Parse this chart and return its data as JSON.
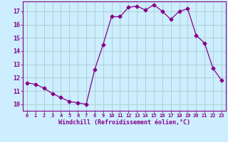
{
  "x": [
    0,
    1,
    2,
    3,
    4,
    5,
    6,
    7,
    8,
    9,
    10,
    11,
    12,
    13,
    14,
    15,
    16,
    17,
    18,
    19,
    20,
    21,
    22,
    23
  ],
  "y": [
    11.6,
    11.5,
    11.2,
    10.8,
    10.5,
    10.2,
    10.1,
    10.0,
    12.6,
    14.5,
    16.6,
    16.6,
    17.3,
    17.4,
    17.1,
    17.5,
    17.0,
    16.4,
    17.0,
    17.2,
    15.2,
    14.6,
    12.7,
    11.8
  ],
  "xlim": [
    -0.5,
    23.5
  ],
  "ylim": [
    9.5,
    17.75
  ],
  "yticks": [
    10,
    11,
    12,
    13,
    14,
    15,
    16,
    17
  ],
  "xtick_labels": [
    "0",
    "1",
    "2",
    "3",
    "4",
    "5",
    "6",
    "7",
    "8",
    "9",
    "10",
    "11",
    "12",
    "13",
    "14",
    "15",
    "16",
    "17",
    "18",
    "19",
    "20",
    "21",
    "22",
    "23"
  ],
  "xlabel": "Windchill (Refroidissement éolien,°C)",
  "line_color": "#880088",
  "marker": "D",
  "marker_size": 2.5,
  "bg_color": "#cceeff",
  "grid_color": "#aacccc",
  "label_color": "#880088",
  "tick_color": "#880088"
}
